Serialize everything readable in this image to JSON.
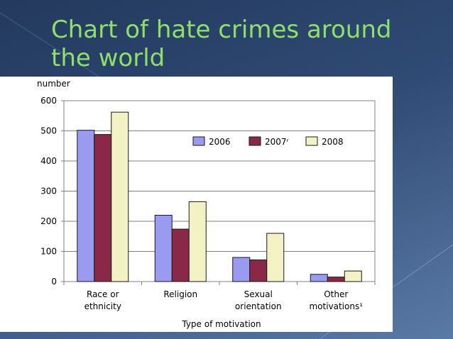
{
  "slide": {
    "title": "Chart of hate crimes around the world"
  },
  "chart_data": {
    "type": "bar",
    "title": "",
    "xlabel": "Type of motivation",
    "ylabel": "number",
    "ylim": [
      0,
      600
    ],
    "yticks": [
      0,
      100,
      200,
      300,
      400,
      500,
      600
    ],
    "grid": true,
    "legend_position": "top-right",
    "categories": [
      [
        "Race or",
        "ethnicity"
      ],
      [
        "Religion"
      ],
      [
        "Sexual",
        "orientation"
      ],
      [
        "Other",
        "motivations¹"
      ]
    ],
    "series": [
      {
        "name": "2006",
        "values": [
          502,
          220,
          80,
          24
        ],
        "color": "#9a9af0"
      },
      {
        "name": "2007ʳ",
        "values": [
          488,
          174,
          72,
          15
        ],
        "color": "#8a2848"
      },
      {
        "name": "2008",
        "values": [
          562,
          265,
          160,
          35
        ],
        "color": "#f2f2c4"
      }
    ]
  }
}
